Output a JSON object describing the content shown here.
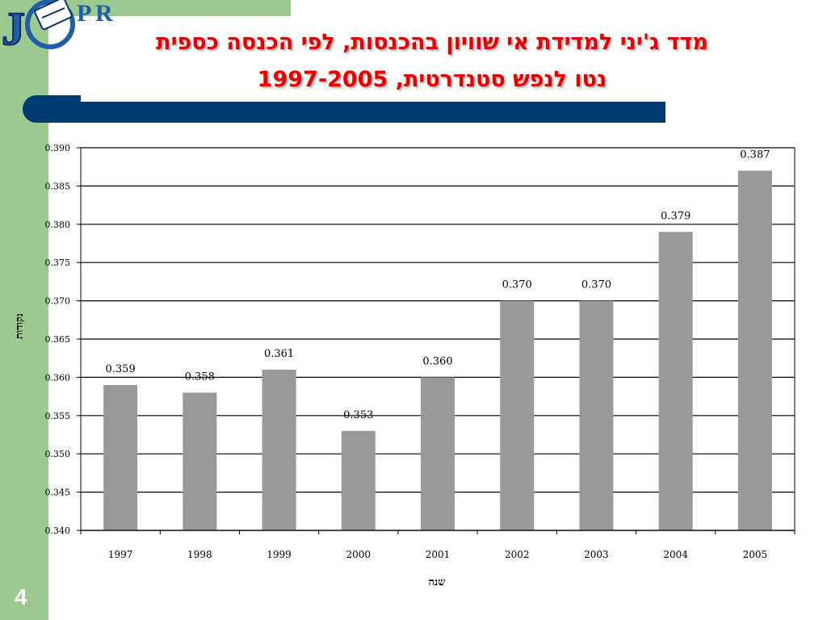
{
  "slide": {
    "title_line1": "מדד ג'יני למדידת אי שוויון בהכנסות, לפי הכנסה כספית",
    "title_line2": "נטו לנפש סטנדרטית, 1997-2005",
    "number": "4",
    "logo_text": "JCPR"
  },
  "colors": {
    "sidebar": "#9cc98f",
    "accent_bar": "#003b73",
    "title": "#e60000",
    "bars": "#999999"
  },
  "chart_data": {
    "type": "bar",
    "title": "",
    "xlabel": "שנה",
    "ylabel": "נקודות",
    "categories": [
      "1997",
      "1998",
      "1999",
      "2000",
      "2001",
      "2002",
      "2003",
      "2004",
      "2005"
    ],
    "values": [
      0.359,
      0.358,
      0.361,
      0.353,
      0.36,
      0.37,
      0.37,
      0.379,
      0.387
    ],
    "value_labels": [
      "0.359",
      "0.358",
      "0.361",
      "0.353",
      "0.360",
      "0.370",
      "0.370",
      "0.379",
      "0.387"
    ],
    "ylim": [
      0.34,
      0.39
    ],
    "yticks": [
      "0.340",
      "0.345",
      "0.350",
      "0.355",
      "0.360",
      "0.365",
      "0.370",
      "0.375",
      "0.380",
      "0.385",
      "0.390"
    ],
    "grid": true,
    "legend": "none"
  }
}
